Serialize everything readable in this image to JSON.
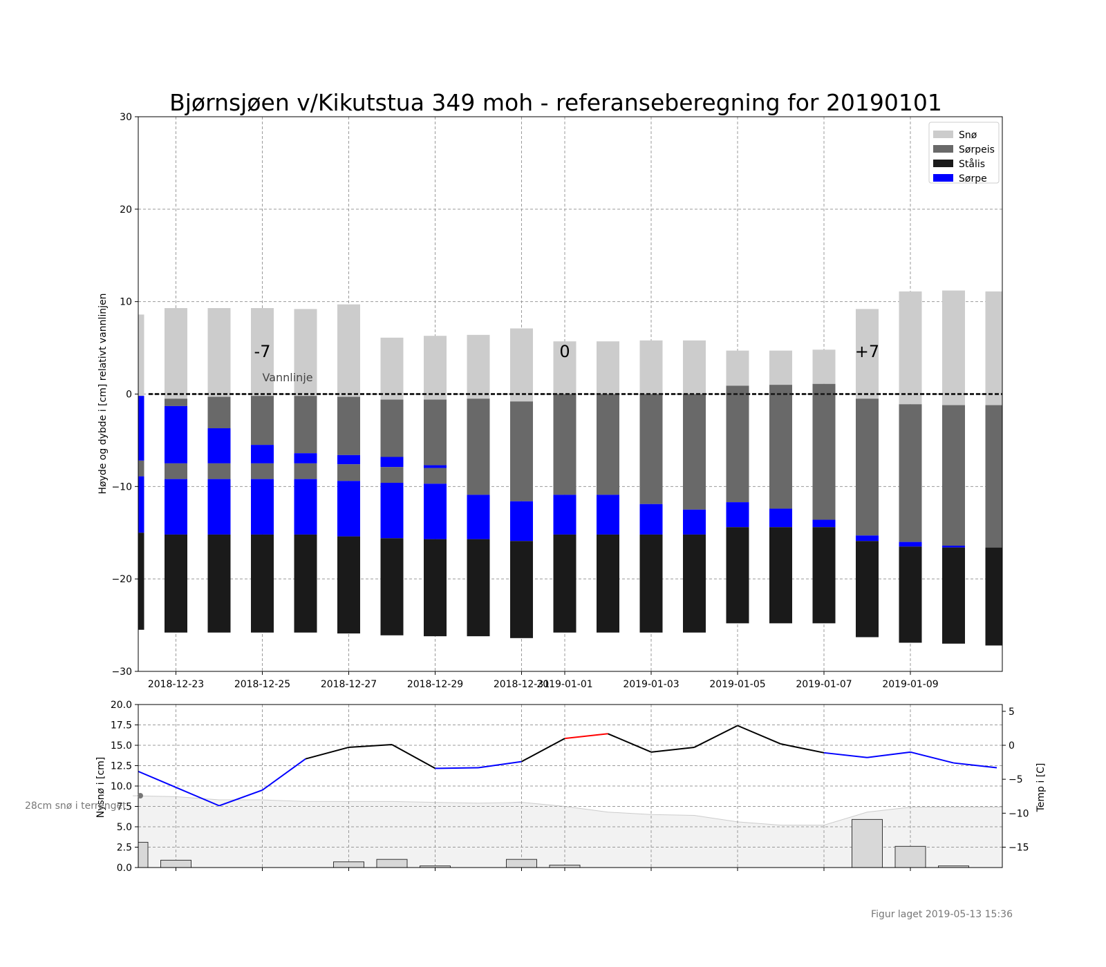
{
  "chart_data": [
    {
      "type": "bar",
      "title": "Bjørnsjøen v/Kikutstua 349 moh - referanseberegning for 20190101",
      "ylabel": "Høyde og dybde i [cm] relativt vannlinjen",
      "ylim": [
        -30,
        30
      ],
      "yticks": [
        30,
        20,
        10,
        0,
        -10,
        -20,
        -30
      ],
      "ytick_labels": [
        "30",
        "20",
        "10",
        "0",
        "−10",
        "−20",
        "−30"
      ],
      "x_dates": [
        "2018-12-22",
        "2018-12-23",
        "2018-12-24",
        "2018-12-25",
        "2018-12-26",
        "2018-12-27",
        "2018-12-28",
        "2018-12-29",
        "2018-12-30",
        "2018-12-31",
        "2019-01-01",
        "2019-01-02",
        "2019-01-03",
        "2019-01-04",
        "2019-01-05",
        "2019-01-06",
        "2019-01-07",
        "2019-01-08",
        "2019-01-09",
        "2019-01-10",
        "2019-01-11"
      ],
      "xticks": [
        "2018-12-23",
        "2018-12-25",
        "2018-12-27",
        "2018-12-29",
        "2018-12-31",
        "2019-01-01",
        "2019-01-03",
        "2019-01-05",
        "2019-01-07",
        "2019-01-09"
      ],
      "xtick_labels": [
        "2018-12-23",
        "2018-12-25",
        "2018-12-27",
        "2018-12-29",
        "2018-12-31",
        "2019-01-01",
        "2019-01-03",
        "2019-01-05",
        "2019-01-07",
        "2019-01-09"
      ],
      "grid": true,
      "legend": {
        "placement": "top-right",
        "entries": [
          {
            "name": "Snø",
            "color": "#cccccc"
          },
          {
            "name": "Sørpeis",
            "color": "#696969"
          },
          {
            "name": "Stålis",
            "color": "#1a1a1a"
          },
          {
            "name": "Sørpe",
            "color": "#0000ff"
          }
        ]
      },
      "colors": {
        "sno": "#cccccc",
        "sorpeis": "#696969",
        "staalis": "#1a1a1a",
        "sorpe": "#0000ff"
      },
      "layers": [
        [
          [
            -0.2,
            8.6,
            "sno"
          ],
          [
            -0.2,
            -7.2,
            "sorpe"
          ],
          [
            -7.2,
            -8.9,
            "sorpeis"
          ],
          [
            -8.9,
            -15.0,
            "sorpe"
          ],
          [
            -15.0,
            -25.5,
            "staalis"
          ]
        ],
        [
          [
            -0.5,
            9.3,
            "sno"
          ],
          [
            -0.5,
            -1.3,
            "sorpeis"
          ],
          [
            -1.3,
            -7.5,
            "sorpe"
          ],
          [
            -7.5,
            -9.2,
            "sorpeis"
          ],
          [
            -9.2,
            -15.2,
            "sorpe"
          ],
          [
            -15.2,
            -25.8,
            "staalis"
          ]
        ],
        [
          [
            -0.3,
            9.3,
            "sno"
          ],
          [
            -0.3,
            -3.7,
            "sorpeis"
          ],
          [
            -3.7,
            -7.5,
            "sorpe"
          ],
          [
            -7.5,
            -9.2,
            "sorpeis"
          ],
          [
            -9.2,
            -15.2,
            "sorpe"
          ],
          [
            -15.2,
            -25.8,
            "staalis"
          ]
        ],
        [
          [
            -0.2,
            9.3,
            "sno"
          ],
          [
            -0.2,
            -5.5,
            "sorpeis"
          ],
          [
            -5.5,
            -7.5,
            "sorpe"
          ],
          [
            -7.5,
            -9.2,
            "sorpeis"
          ],
          [
            -9.2,
            -15.2,
            "sorpe"
          ],
          [
            -15.2,
            -25.8,
            "staalis"
          ]
        ],
        [
          [
            -0.2,
            9.2,
            "sno"
          ],
          [
            -0.2,
            -6.4,
            "sorpeis"
          ],
          [
            -6.4,
            -7.5,
            "sorpe"
          ],
          [
            -7.5,
            -9.2,
            "sorpeis"
          ],
          [
            -9.2,
            -15.2,
            "sorpe"
          ],
          [
            -15.2,
            -25.8,
            "staalis"
          ]
        ],
        [
          [
            -0.3,
            9.7,
            "sno"
          ],
          [
            -0.3,
            -6.6,
            "sorpeis"
          ],
          [
            -6.6,
            -7.6,
            "sorpe"
          ],
          [
            -7.6,
            -9.4,
            "sorpeis"
          ],
          [
            -9.4,
            -15.4,
            "sorpe"
          ],
          [
            -15.4,
            -25.9,
            "staalis"
          ]
        ],
        [
          [
            -0.6,
            6.1,
            "sno"
          ],
          [
            -0.6,
            -6.8,
            "sorpeis"
          ],
          [
            -6.8,
            -7.9,
            "sorpe"
          ],
          [
            -7.9,
            -9.6,
            "sorpeis"
          ],
          [
            -9.6,
            -15.6,
            "sorpe"
          ],
          [
            -15.6,
            -26.1,
            "staalis"
          ]
        ],
        [
          [
            -0.6,
            6.3,
            "sno"
          ],
          [
            -0.6,
            -7.7,
            "sorpeis"
          ],
          [
            -7.7,
            -8.0,
            "sorpe"
          ],
          [
            -8.0,
            -9.7,
            "sorpeis"
          ],
          [
            -9.7,
            -15.7,
            "sorpe"
          ],
          [
            -15.7,
            -26.2,
            "staalis"
          ]
        ],
        [
          [
            -0.5,
            6.4,
            "sno"
          ],
          [
            -0.5,
            -10.9,
            "sorpeis"
          ],
          [
            -10.9,
            -15.7,
            "sorpe"
          ],
          [
            -15.7,
            -26.2,
            "staalis"
          ]
        ],
        [
          [
            -0.8,
            7.1,
            "sno"
          ],
          [
            -0.8,
            -11.6,
            "sorpeis"
          ],
          [
            -11.6,
            -15.9,
            "sorpe"
          ],
          [
            -15.9,
            -26.4,
            "staalis"
          ]
        ],
        [
          [
            0.0,
            5.7,
            "sno"
          ],
          [
            0.0,
            -10.9,
            "sorpeis"
          ],
          [
            -10.9,
            -15.2,
            "sorpe"
          ],
          [
            -15.2,
            -25.8,
            "staalis"
          ]
        ],
        [
          [
            0.0,
            5.7,
            "sno"
          ],
          [
            0.0,
            -10.9,
            "sorpeis"
          ],
          [
            -10.9,
            -15.2,
            "sorpe"
          ],
          [
            -15.2,
            -25.8,
            "staalis"
          ]
        ],
        [
          [
            0.0,
            5.8,
            "sno"
          ],
          [
            0.0,
            -11.9,
            "sorpeis"
          ],
          [
            -11.9,
            -15.2,
            "sorpe"
          ],
          [
            -15.2,
            -25.8,
            "staalis"
          ]
        ],
        [
          [
            0.0,
            5.8,
            "sno"
          ],
          [
            0.0,
            -12.5,
            "sorpeis"
          ],
          [
            -12.5,
            -15.2,
            "sorpe"
          ],
          [
            -15.2,
            -25.8,
            "staalis"
          ]
        ],
        [
          [
            0.9,
            4.7,
            "sno"
          ],
          [
            0.9,
            -11.7,
            "sorpeis"
          ],
          [
            -11.7,
            -14.4,
            "sorpe"
          ],
          [
            -14.4,
            -24.8,
            "staalis"
          ]
        ],
        [
          [
            1.0,
            4.7,
            "sno"
          ],
          [
            1.0,
            -12.4,
            "sorpeis"
          ],
          [
            -12.4,
            -14.4,
            "sorpe"
          ],
          [
            -14.4,
            -24.8,
            "staalis"
          ]
        ],
        [
          [
            1.1,
            4.8,
            "sno"
          ],
          [
            1.1,
            -13.6,
            "sorpeis"
          ],
          [
            -13.6,
            -14.4,
            "sorpe"
          ],
          [
            -14.4,
            -24.8,
            "staalis"
          ]
        ],
        [
          [
            -0.5,
            9.2,
            "sno"
          ],
          [
            -0.5,
            -15.3,
            "sorpeis"
          ],
          [
            -15.3,
            -15.9,
            "sorpe"
          ],
          [
            -15.9,
            -26.3,
            "staalis"
          ]
        ],
        [
          [
            -1.1,
            11.1,
            "sno"
          ],
          [
            -1.1,
            -16.0,
            "sorpeis"
          ],
          [
            -16.0,
            -16.5,
            "sorpe"
          ],
          [
            -16.5,
            -26.9,
            "staalis"
          ]
        ],
        [
          [
            -1.2,
            11.2,
            "sno"
          ],
          [
            -1.2,
            -16.4,
            "sorpeis"
          ],
          [
            -16.4,
            -16.6,
            "sorpe"
          ],
          [
            -16.6,
            -27.0,
            "staalis"
          ]
        ],
        [
          [
            -1.2,
            11.1,
            "sno"
          ],
          [
            -1.2,
            -16.6,
            "sorpeis"
          ],
          [
            -16.6,
            -27.2,
            "staalis"
          ]
        ]
      ],
      "annotations": [
        {
          "text": "-7",
          "date": "2018-12-25",
          "y": 4.6
        },
        {
          "text": "0",
          "date": "2019-01-01",
          "y": 4.6
        },
        {
          "text": "+7",
          "date": "2019-01-08",
          "y": 4.6
        },
        {
          "text": "Vannlinje",
          "date": "2018-12-25",
          "y": 1.4
        }
      ],
      "reference_line": {
        "y": 0,
        "label": "Vannlinje",
        "style": "dashed"
      }
    },
    {
      "type": "bar+line",
      "ylabel_left": "Nysnø i [cm]",
      "ylabel_right": "Temp i [C]",
      "ylim_left": [
        0,
        20
      ],
      "ylim_right": [
        -18,
        6
      ],
      "yticks_left": [
        0,
        2.5,
        5,
        7.5,
        10,
        12.5,
        15,
        17.5,
        20
      ],
      "ytick_labels_left": [
        "0.0",
        "2.5",
        "5.0",
        "7.5",
        "10.0",
        "12.5",
        "15.0",
        "17.5",
        "20.0"
      ],
      "yticks_right": [
        5,
        0,
        -5,
        -10,
        -15
      ],
      "ytick_labels_right": [
        "5",
        "0",
        "−5",
        "−10",
        "−15"
      ],
      "grid": true,
      "new_snow": [
        {
          "date": "2018-12-22",
          "cm": 3.1
        },
        {
          "date": "2018-12-23",
          "cm": 0.9
        },
        {
          "date": "2018-12-27",
          "cm": 0.7
        },
        {
          "date": "2018-12-28",
          "cm": 1.0
        },
        {
          "date": "2018-12-29",
          "cm": 0.2
        },
        {
          "date": "2018-12-31",
          "cm": 1.0
        },
        {
          "date": "2019-01-01",
          "cm": 0.3
        },
        {
          "date": "2019-01-08",
          "cm": 5.9
        },
        {
          "date": "2019-01-09",
          "cm": 2.6
        },
        {
          "date": "2019-01-10",
          "cm": 0.2
        }
      ],
      "terrain_snow": [
        {
          "date": "2018-12-22",
          "cm": 8.8
        },
        {
          "date": "2018-12-23",
          "cm": 8.7
        },
        {
          "date": "2018-12-24",
          "cm": 8.3
        },
        {
          "date": "2018-12-25",
          "cm": 8.3
        },
        {
          "date": "2018-12-26",
          "cm": 8.1
        },
        {
          "date": "2018-12-27",
          "cm": 8.1
        },
        {
          "date": "2018-12-28",
          "cm": 8.1
        },
        {
          "date": "2018-12-29",
          "cm": 8.0
        },
        {
          "date": "2018-12-30",
          "cm": 7.9
        },
        {
          "date": "2018-12-31",
          "cm": 8.0
        },
        {
          "date": "2019-01-01",
          "cm": 7.5
        },
        {
          "date": "2019-01-02",
          "cm": 6.8
        },
        {
          "date": "2019-01-03",
          "cm": 6.5
        },
        {
          "date": "2019-01-04",
          "cm": 6.4
        },
        {
          "date": "2019-01-05",
          "cm": 5.6
        },
        {
          "date": "2019-01-06",
          "cm": 5.2
        },
        {
          "date": "2019-01-07",
          "cm": 5.2
        },
        {
          "date": "2019-01-08",
          "cm": 6.8
        },
        {
          "date": "2019-01-09",
          "cm": 7.4
        },
        {
          "date": "2019-01-10",
          "cm": 7.4
        },
        {
          "date": "2019-01-11",
          "cm": 7.4
        }
      ],
      "temperature": [
        {
          "date": "2018-12-22",
          "c": -3.5
        },
        {
          "date": "2018-12-23",
          "c": -6.2
        },
        {
          "date": "2018-12-24",
          "c": -8.9
        },
        {
          "date": "2018-12-25",
          "c": -6.6
        },
        {
          "date": "2018-12-26",
          "c": -2.0
        },
        {
          "date": "2018-12-27",
          "c": -0.3
        },
        {
          "date": "2018-12-28",
          "c": 0.1
        },
        {
          "date": "2018-12-29",
          "c": -3.4
        },
        {
          "date": "2018-12-30",
          "c": -3.3
        },
        {
          "date": "2018-12-31",
          "c": -2.4
        },
        {
          "date": "2019-01-01",
          "c": 1.0
        },
        {
          "date": "2019-01-02",
          "c": 1.7
        },
        {
          "date": "2019-01-03",
          "c": -1.0
        },
        {
          "date": "2019-01-04",
          "c": -0.3
        },
        {
          "date": "2019-01-05",
          "c": 2.9
        },
        {
          "date": "2019-01-06",
          "c": 0.2
        },
        {
          "date": "2019-01-07",
          "c": -1.1
        },
        {
          "date": "2019-01-08",
          "c": -1.8
        },
        {
          "date": "2019-01-09",
          "c": -1.0
        },
        {
          "date": "2019-01-10",
          "c": -2.6
        },
        {
          "date": "2019-01-11",
          "c": -3.3
        }
      ],
      "temperature_colors": {
        "below_zero": "#0000ff",
        "near_zero": "#000000",
        "above_zero": "#ff0000"
      },
      "terrain_snow_label": "28cm snø i terrenget"
    }
  ],
  "footer": {
    "created": "Figur laget 2019-05-13 15:36"
  }
}
